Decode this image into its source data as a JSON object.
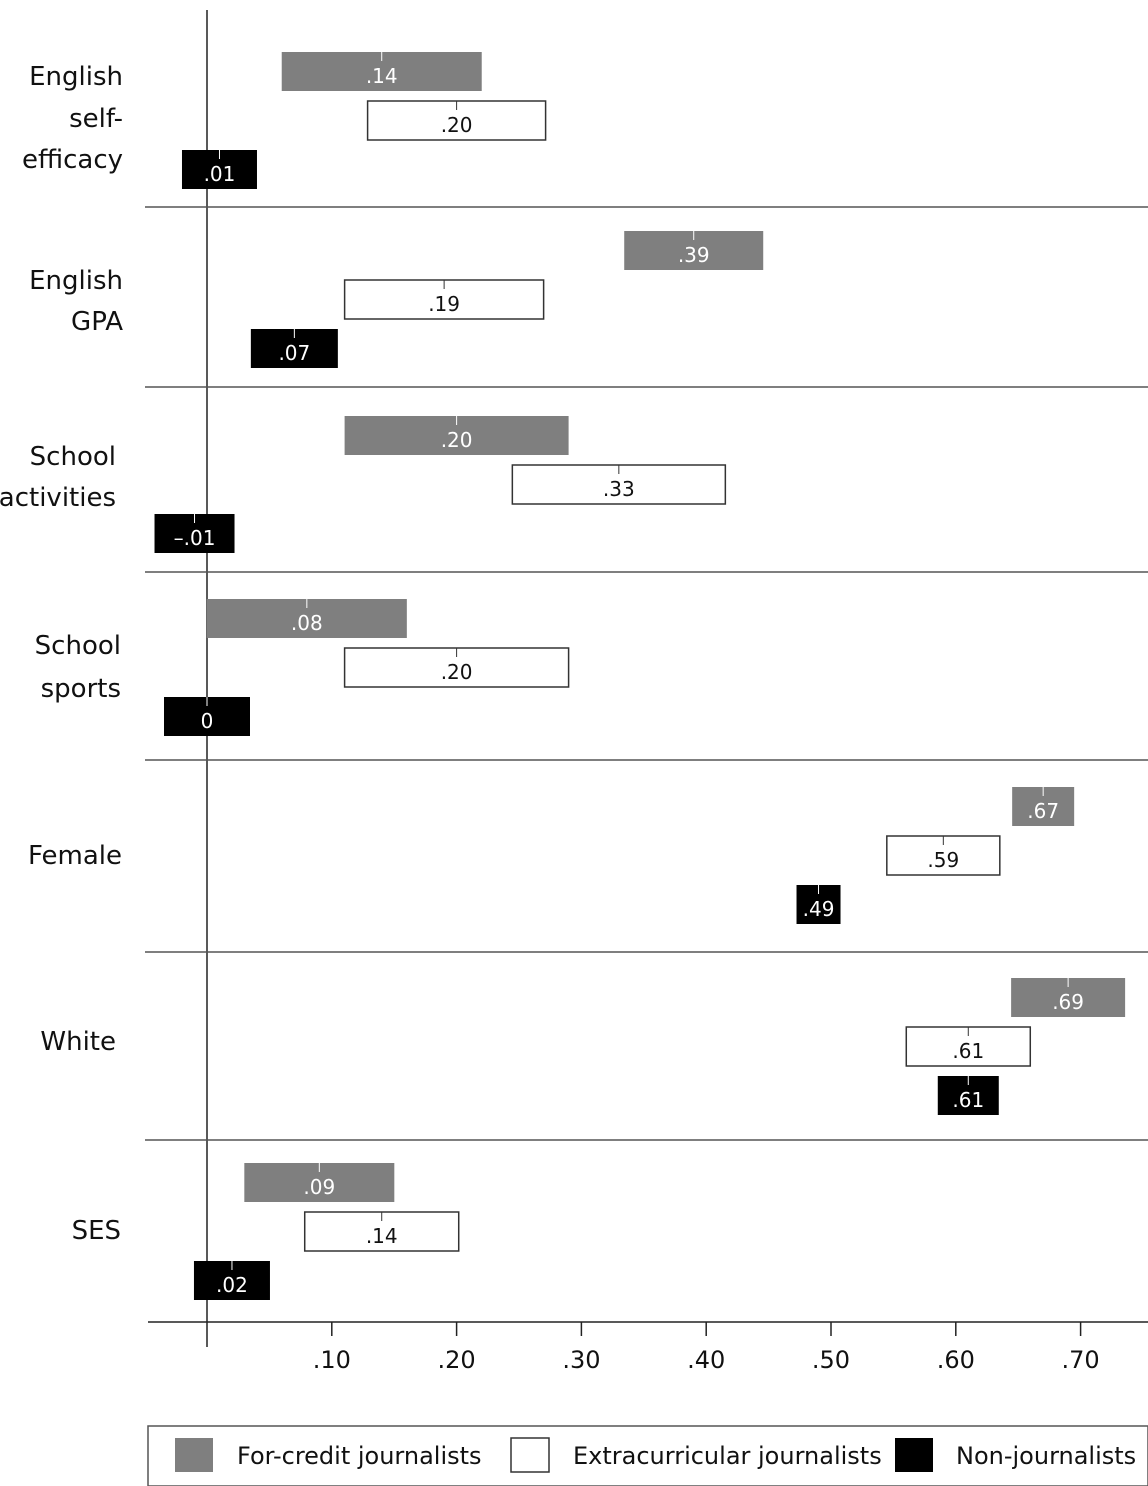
{
  "chart_data": {
    "type": "bar",
    "orientation": "horizontal",
    "categories": [
      [
        "English",
        "self-",
        "efficacy"
      ],
      [
        "English",
        "GPA"
      ],
      [
        "School",
        "activities"
      ],
      [
        "School",
        "sports"
      ],
      [
        "Female"
      ],
      [
        "White"
      ],
      [
        "SES"
      ]
    ],
    "series": [
      {
        "name": "For-credit journalists",
        "color": "#7f7f7f",
        "values": [
          0.14,
          0.39,
          0.2,
          0.08,
          0.67,
          0.69,
          0.09
        ],
        "labels": [
          ".14",
          ".39",
          ".20",
          ".08",
          ".67",
          ".69",
          ".09"
        ]
      },
      {
        "name": "Extracurricular journalists",
        "color": "#ffffff",
        "values": [
          0.2,
          0.19,
          0.33,
          0.2,
          0.59,
          0.61,
          0.14
        ],
        "labels": [
          ".20",
          ".19",
          ".33",
          ".20",
          ".59",
          ".61",
          ".14"
        ]
      },
      {
        "name": "Non-journalists",
        "color": "#000000",
        "values": [
          0.01,
          0.07,
          -0.01,
          0,
          0.49,
          0.61,
          0.02
        ],
        "labels": [
          ".01",
          ".07",
          "–.01",
          "0",
          ".49",
          ".61",
          ".02"
        ]
      }
    ],
    "x_ticks": [
      0.1,
      0.2,
      0.3,
      0.4,
      0.5,
      0.6,
      0.7
    ],
    "x_tick_labels": [
      ".10",
      ".20",
      ".30",
      ".40",
      ".50",
      ".60",
      ".70"
    ],
    "xlim": [
      -0.05,
      0.755
    ],
    "grid": false,
    "legend_position": "bottom"
  }
}
